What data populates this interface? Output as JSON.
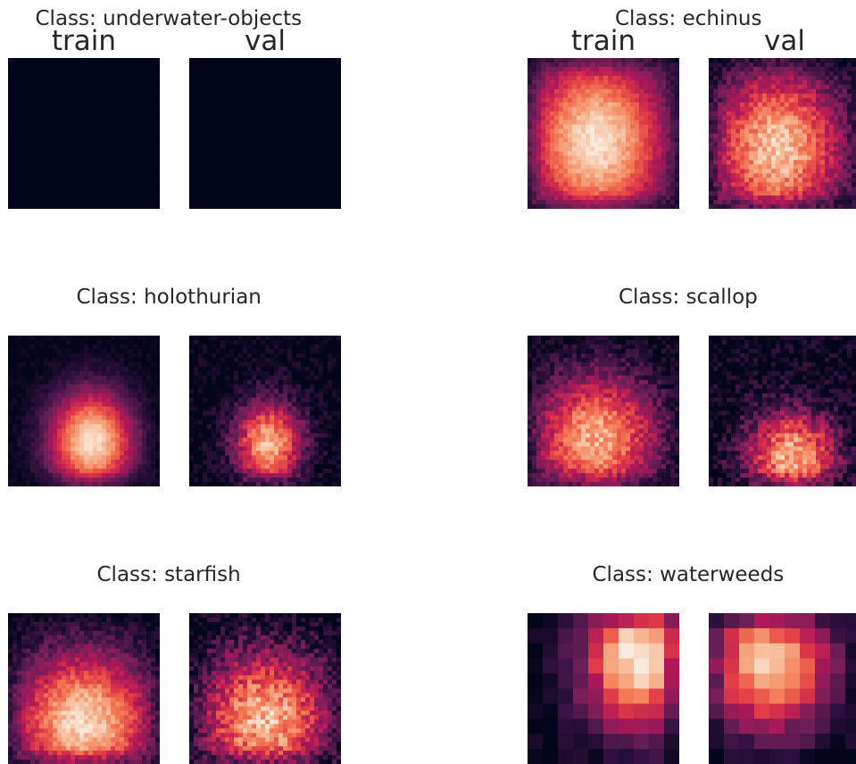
{
  "column_labels": {
    "train": "train",
    "val": "val"
  },
  "colormap": "rocket",
  "colors": {
    "low": "#03051a",
    "mid": "#cb1b4f",
    "high": "#faebdd"
  },
  "chart_data": [
    {
      "type": "heatmap",
      "title": "Class: underwater-objects",
      "train_label": "train",
      "val_label": "val",
      "train": {
        "peak": 0.0,
        "center": [
          0.5,
          0.5
        ],
        "spread": [
          0.3,
          0.3
        ],
        "noise": 0.0,
        "blocky": false
      },
      "val": {
        "peak": 0.0,
        "center": [
          0.5,
          0.5
        ],
        "spread": [
          0.3,
          0.3
        ],
        "noise": 0.0,
        "blocky": false
      }
    },
    {
      "type": "heatmap",
      "title": "Class: echinus",
      "train_label": "train",
      "val_label": "val",
      "train": {
        "peak": 0.98,
        "center": [
          0.45,
          0.55
        ],
        "spread": [
          0.34,
          0.42
        ],
        "noise": 0.12,
        "blocky": false
      },
      "val": {
        "peak": 0.9,
        "center": [
          0.45,
          0.6
        ],
        "spread": [
          0.32,
          0.38
        ],
        "noise": 0.22,
        "blocky": false
      }
    },
    {
      "type": "heatmap",
      "title": "Class: holothurian",
      "train_label": "train",
      "val_label": "val",
      "train": {
        "peak": 0.98,
        "center": [
          0.55,
          0.7
        ],
        "spread": [
          0.2,
          0.24
        ],
        "noise": 0.1,
        "blocky": false
      },
      "val": {
        "peak": 0.88,
        "center": [
          0.52,
          0.72
        ],
        "spread": [
          0.16,
          0.2
        ],
        "noise": 0.22,
        "blocky": false
      }
    },
    {
      "type": "heatmap",
      "title": "Class: scallop",
      "train_label": "train",
      "val_label": "val",
      "train": {
        "peak": 0.85,
        "center": [
          0.45,
          0.68
        ],
        "spread": [
          0.3,
          0.3
        ],
        "noise": 0.22,
        "blocky": false
      },
      "val": {
        "peak": 0.85,
        "center": [
          0.55,
          0.8
        ],
        "spread": [
          0.22,
          0.22
        ],
        "noise": 0.3,
        "blocky": false
      }
    },
    {
      "type": "heatmap",
      "title": "Class: starfish",
      "train_label": "train",
      "val_label": "val",
      "train": {
        "peak": 0.95,
        "center": [
          0.5,
          0.72
        ],
        "spread": [
          0.33,
          0.33
        ],
        "noise": 0.18,
        "blocky": false
      },
      "val": {
        "peak": 0.88,
        "center": [
          0.5,
          0.7
        ],
        "spread": [
          0.3,
          0.32
        ],
        "noise": 0.3,
        "blocky": false
      }
    },
    {
      "type": "heatmap",
      "title": "Class: waterweeds",
      "train_label": "train",
      "val_label": "val",
      "train": {
        "peak": 1.0,
        "center": [
          0.72,
          0.3
        ],
        "spread": [
          0.25,
          0.35
        ],
        "noise": 0.15,
        "blocky": true
      },
      "val": {
        "peak": 0.9,
        "center": [
          0.4,
          0.35
        ],
        "spread": [
          0.3,
          0.3
        ],
        "noise": 0.15,
        "blocky": true
      }
    }
  ]
}
